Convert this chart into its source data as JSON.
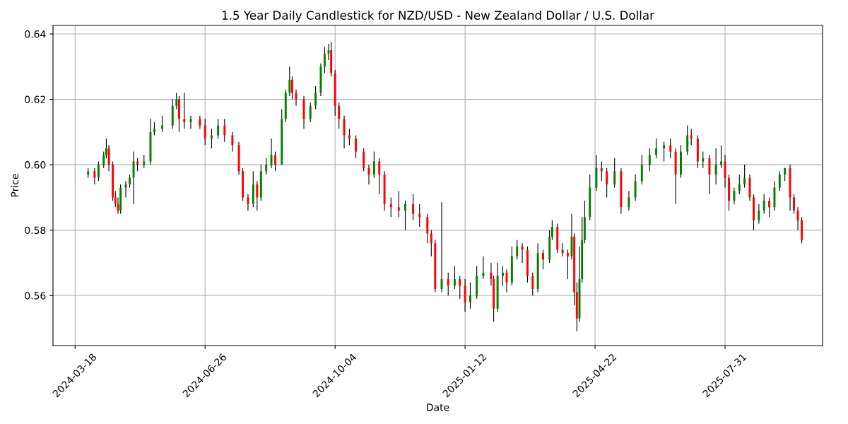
{
  "chart_data": {
    "type": "candlestick",
    "title": "1.5 Year Daily Candlestick for NZD/USD - New Zealand Dollar / U.S. Dollar",
    "xlabel": "Date",
    "ylabel": "Price",
    "grid": true,
    "color": "#000000",
    "colors": [
      "#008000",
      "#ff0000",
      "#008000",
      "#008000",
      "#008000",
      "#ff0000",
      "#ff0000",
      "#ff0000",
      "#ff0000",
      "#008000",
      "#008000",
      "#008000",
      "#008000",
      "#ff0000",
      "#008000",
      "#008000",
      "#008000",
      "#008000",
      "#008000",
      "#008000",
      "#ff0000",
      "#ff0000",
      "#008000",
      "#ff0000",
      "#ff0000",
      "#008000",
      "#008000",
      "#ff0000",
      "#ff0000",
      "#ff0000",
      "#ff0000",
      "#ff0000",
      "#008000",
      "#ff0000",
      "#008000",
      "#008000",
      "#008000",
      "#ff0000",
      "#008000",
      "#008000",
      "#008000",
      "#ff0000",
      "#ff0000",
      "#ff0000",
      "#008000",
      "#008000",
      "#008000",
      "#008000",
      "#008000",
      "#ff0000",
      "#ff0000",
      "#ff0000",
      "#ff0000",
      "#ff0000",
      "#ff0000",
      "#ff0000",
      "#ff0000",
      "#008000",
      "#ff0000",
      "#ff0000",
      "#ff0000",
      "#ff0000",
      "#008000",
      "#ff0000",
      "#ff0000",
      "#ff0000",
      "#ff0000",
      "#ff0000",
      "#008000",
      "#ff0000",
      "#008000",
      "#ff0000",
      "#ff0000",
      "#008000",
      "#008000",
      "#008000",
      "#ff0000",
      "#ff0000",
      "#008000",
      "#008000",
      "#ff0000",
      "#008000",
      "#008000",
      "#ff0000",
      "#ff0000",
      "#ff0000",
      "#008000",
      "#ff0000",
      "#008000",
      "#008000",
      "#ff0000",
      "#ff0000",
      "#ff0000",
      "#008000",
      "#ff0000",
      "#ff0000",
      "#008000",
      "#008000",
      "#008000",
      "#008000",
      "#008000",
      "#ff0000",
      "#ff0000",
      "#008000",
      "#ff0000",
      "#008000",
      "#008000",
      "#008000",
      "#008000",
      "#008000",
      "#008000",
      "#ff0000",
      "#ff0000",
      "#008000",
      "#008000",
      "#ff0000",
      "#ff0000",
      "#008000",
      "#ff0000",
      "#008000",
      "#008000",
      "#ff0000",
      "#ff0000",
      "#008000",
      "#008000",
      "#008000",
      "#ff0000",
      "#ff0000",
      "#008000",
      "#008000",
      "#ff0000",
      "#008000",
      "#008000",
      "#008000",
      "#ff0000",
      "#ff0000",
      "#ff0000",
      "#ff0000"
    ],
    "xlim": [
      "2024-03-01",
      "2025-10-14"
    ],
    "xticks": [
      "2024-03-18",
      "2024-06-26",
      "2024-10-04",
      "2025-01-12",
      "2025-04-22",
      "2025-07-31"
    ],
    "ylim": [
      0.5447,
      0.6426
    ],
    "yticks": [
      0.56,
      0.58,
      {
        "value": 0.6,
        "label": "0.60"
      },
      0.62,
      0.64
    ],
    "x": [
      "2024-03-28",
      "2024-04-02",
      "2024-04-05",
      "2024-04-09",
      "2024-04-11",
      "2024-04-13",
      "2024-04-16",
      "2024-04-18",
      "2024-04-20",
      "2024-04-22",
      "2024-04-26",
      "2024-04-29",
      "2024-05-02",
      "2024-05-05",
      "2024-05-10",
      "2024-05-15",
      "2024-05-18",
      "2024-05-24",
      "2024-06-01",
      "2024-06-04",
      "2024-06-06",
      "2024-06-10",
      "2024-06-15",
      "2024-06-22",
      "2024-06-26",
      "2024-07-01",
      "2024-07-06",
      "2024-07-11",
      "2024-07-17",
      "2024-07-22",
      "2024-07-25",
      "2024-07-29",
      "2024-08-02",
      "2024-08-05",
      "2024-08-08",
      "2024-08-12",
      "2024-08-16",
      "2024-08-19",
      "2024-08-24",
      "2024-08-27",
      "2024-08-30",
      "2024-09-01",
      "2024-09-04",
      "2024-09-10",
      "2024-09-15",
      "2024-09-19",
      "2024-09-23",
      "2024-09-26",
      "2024-09-29",
      "2024-10-01",
      "2024-10-04",
      "2024-10-07",
      "2024-10-11",
      "2024-10-15",
      "2024-10-20",
      "2024-10-26",
      "2024-10-30",
      "2024-11-03",
      "2024-11-07",
      "2024-11-11",
      "2024-11-16",
      "2024-11-22",
      "2024-11-27",
      "2024-12-03",
      "2024-12-08",
      "2024-12-14",
      "2024-12-17",
      "2024-12-20",
      "2024-12-25",
      "2024-12-30",
      "2025-01-04",
      "2025-01-08",
      "2025-01-12",
      "2025-01-16",
      "2025-01-21",
      "2025-01-26",
      "2025-02-01",
      "2025-02-03",
      "2025-02-06",
      "2025-02-10",
      "2025-02-13",
      "2025-02-17",
      "2025-02-21",
      "2025-02-25",
      "2025-03-01",
      "2025-03-05",
      "2025-03-09",
      "2025-03-13",
      "2025-03-18",
      "2025-03-20",
      "2025-03-24",
      "2025-03-28",
      "2025-04-01",
      "2025-04-04",
      "2025-04-06",
      "2025-04-08",
      "2025-04-10",
      "2025-04-12",
      "2025-04-14",
      "2025-04-18",
      "2025-04-23",
      "2025-04-27",
      "2025-05-01",
      "2025-05-07",
      "2025-05-12",
      "2025-05-18",
      "2025-05-23",
      "2025-05-28",
      "2025-06-03",
      "2025-06-08",
      "2025-06-14",
      "2025-06-19",
      "2025-06-23",
      "2025-06-27",
      "2025-07-02",
      "2025-07-05",
      "2025-07-10",
      "2025-07-14",
      "2025-07-19",
      "2025-07-24",
      "2025-07-28",
      "2025-07-31",
      "2025-08-03",
      "2025-08-07",
      "2025-08-11",
      "2025-08-15",
      "2025-08-19",
      "2025-08-22",
      "2025-08-26",
      "2025-08-30",
      "2025-09-03",
      "2025-09-07",
      "2025-09-11",
      "2025-09-15",
      "2025-09-19",
      "2025-09-22",
      "2025-09-25",
      "2025-09-28"
    ],
    "ohlc": [
      [
        0.597,
        0.599,
        0.596,
        0.598
      ],
      [
        0.598,
        0.599,
        0.594,
        0.596
      ],
      [
        0.596,
        0.601,
        0.595,
        0.6
      ],
      [
        0.6,
        0.604,
        0.599,
        0.603
      ],
      [
        0.603,
        0.608,
        0.602,
        0.605
      ],
      [
        0.605,
        0.606,
        0.598,
        0.6
      ],
      [
        0.6,
        0.601,
        0.589,
        0.59
      ],
      [
        0.59,
        0.592,
        0.587,
        0.588
      ],
      [
        0.588,
        0.59,
        0.585,
        0.586
      ],
      [
        0.586,
        0.594,
        0.585,
        0.593
      ],
      [
        0.593,
        0.595,
        0.59,
        0.594
      ],
      [
        0.594,
        0.597,
        0.593,
        0.596
      ],
      [
        0.596,
        0.604,
        0.588,
        0.601
      ],
      [
        0.601,
        0.602,
        0.598,
        0.6
      ],
      [
        0.6,
        0.603,
        0.599,
        0.601
      ],
      [
        0.601,
        0.614,
        0.6,
        0.61
      ],
      [
        0.61,
        0.613,
        0.609,
        0.611
      ],
      [
        0.611,
        0.615,
        0.61,
        0.612
      ],
      [
        0.612,
        0.62,
        0.611,
        0.618
      ],
      [
        0.618,
        0.622,
        0.617,
        0.62
      ],
      [
        0.62,
        0.621,
        0.61,
        0.614
      ],
      [
        0.614,
        0.622,
        0.611,
        0.613
      ],
      [
        0.613,
        0.615,
        0.611,
        0.614
      ],
      [
        0.614,
        0.615,
        0.611,
        0.612
      ],
      [
        0.612,
        0.614,
        0.606,
        0.608
      ],
      [
        0.608,
        0.611,
        0.605,
        0.609
      ],
      [
        0.609,
        0.614,
        0.608,
        0.612
      ],
      [
        0.612,
        0.614,
        0.607,
        0.609
      ],
      [
        0.609,
        0.61,
        0.604,
        0.606
      ],
      [
        0.606,
        0.607,
        0.597,
        0.598
      ],
      [
        0.598,
        0.599,
        0.589,
        0.59
      ],
      [
        0.59,
        0.591,
        0.586,
        0.588
      ],
      [
        0.588,
        0.598,
        0.587,
        0.594
      ],
      [
        0.594,
        0.595,
        0.586,
        0.59
      ],
      [
        0.59,
        0.6,
        0.589,
        0.598
      ],
      [
        0.598,
        0.602,
        0.597,
        0.6
      ],
      [
        0.6,
        0.608,
        0.599,
        0.603
      ],
      [
        0.603,
        0.604,
        0.598,
        0.6
      ],
      [
        0.6,
        0.617,
        0.6,
        0.614
      ],
      [
        0.614,
        0.623,
        0.613,
        0.622
      ],
      [
        0.622,
        0.63,
        0.621,
        0.626
      ],
      [
        0.626,
        0.627,
        0.62,
        0.622
      ],
      [
        0.622,
        0.623,
        0.618,
        0.62
      ],
      [
        0.62,
        0.621,
        0.611,
        0.614
      ],
      [
        0.614,
        0.619,
        0.613,
        0.618
      ],
      [
        0.618,
        0.624,
        0.617,
        0.622
      ],
      [
        0.622,
        0.631,
        0.621,
        0.63
      ],
      [
        0.63,
        0.636,
        0.628,
        0.634
      ],
      [
        0.634,
        0.637,
        0.632,
        0.635
      ],
      [
        0.635,
        0.6375,
        0.627,
        0.628
      ],
      [
        0.628,
        0.629,
        0.615,
        0.618
      ],
      [
        0.618,
        0.619,
        0.611,
        0.614
      ],
      [
        0.614,
        0.615,
        0.605,
        0.609
      ],
      [
        0.609,
        0.611,
        0.606,
        0.608
      ],
      [
        0.608,
        0.609,
        0.602,
        0.604
      ],
      [
        0.604,
        0.605,
        0.598,
        0.599
      ],
      [
        0.599,
        0.6,
        0.594,
        0.597
      ],
      [
        0.597,
        0.604,
        0.596,
        0.601
      ],
      [
        0.601,
        0.602,
        0.591,
        0.597
      ],
      [
        0.597,
        0.598,
        0.586,
        0.588
      ],
      [
        0.588,
        0.59,
        0.584,
        0.587
      ],
      [
        0.587,
        0.592,
        0.584,
        0.586
      ],
      [
        0.586,
        0.589,
        0.58,
        0.588
      ],
      [
        0.588,
        0.591,
        0.583,
        0.585
      ],
      [
        0.585,
        0.588,
        0.581,
        0.584
      ],
      [
        0.584,
        0.585,
        0.576,
        0.579
      ],
      [
        0.579,
        0.58,
        0.572,
        0.576
      ],
      [
        0.576,
        0.577,
        0.561,
        0.562
      ],
      [
        0.562,
        0.5885,
        0.561,
        0.565
      ],
      [
        0.565,
        0.567,
        0.56,
        0.563
      ],
      [
        0.563,
        0.569,
        0.562,
        0.565
      ],
      [
        0.565,
        0.566,
        0.559,
        0.563
      ],
      [
        0.563,
        0.565,
        0.555,
        0.558
      ],
      [
        0.558,
        0.564,
        0.556,
        0.56
      ],
      [
        0.56,
        0.569,
        0.559,
        0.566
      ],
      [
        0.566,
        0.572,
        0.565,
        0.567
      ],
      [
        0.567,
        0.57,
        0.563,
        0.565
      ],
      [
        0.565,
        0.566,
        0.552,
        0.556
      ],
      [
        0.556,
        0.57,
        0.555,
        0.566
      ],
      [
        0.566,
        0.569,
        0.563,
        0.567
      ],
      [
        0.567,
        0.568,
        0.561,
        0.564
      ],
      [
        0.564,
        0.575,
        0.563,
        0.572
      ],
      [
        0.572,
        0.577,
        0.571,
        0.575
      ],
      [
        0.575,
        0.576,
        0.57,
        0.574
      ],
      [
        0.574,
        0.575,
        0.564,
        0.566
      ],
      [
        0.566,
        0.567,
        0.56,
        0.562
      ],
      [
        0.562,
        0.576,
        0.561,
        0.573
      ],
      [
        0.573,
        0.574,
        0.568,
        0.571
      ],
      [
        0.571,
        0.58,
        0.57,
        0.578
      ],
      [
        0.578,
        0.583,
        0.577,
        0.581
      ],
      [
        0.581,
        0.582,
        0.573,
        0.574
      ],
      [
        0.574,
        0.576,
        0.572,
        0.573
      ],
      [
        0.573,
        0.574,
        0.565,
        0.572
      ],
      [
        0.572,
        0.585,
        0.571,
        0.578
      ],
      [
        0.578,
        0.579,
        0.557,
        0.561
      ],
      [
        0.561,
        0.564,
        0.549,
        0.553
      ],
      [
        0.553,
        0.575,
        0.552,
        0.565
      ],
      [
        0.565,
        0.584,
        0.564,
        0.577
      ],
      [
        0.577,
        0.589,
        0.576,
        0.584
      ],
      [
        0.584,
        0.597,
        0.583,
        0.593
      ],
      [
        0.593,
        0.603,
        0.592,
        0.599
      ],
      [
        0.599,
        0.601,
        0.595,
        0.598
      ],
      [
        0.598,
        0.599,
        0.59,
        0.594
      ],
      [
        0.594,
        0.602,
        0.593,
        0.598
      ],
      [
        0.598,
        0.599,
        0.585,
        0.587
      ],
      [
        0.587,
        0.592,
        0.586,
        0.59
      ],
      [
        0.59,
        0.597,
        0.589,
        0.595
      ],
      [
        0.595,
        0.603,
        0.594,
        0.6
      ],
      [
        0.6,
        0.605,
        0.598,
        0.603
      ],
      [
        0.603,
        0.608,
        0.602,
        0.605
      ],
      [
        0.605,
        0.607,
        0.601,
        0.606
      ],
      [
        0.606,
        0.608,
        0.602,
        0.604
      ],
      [
        0.604,
        0.605,
        0.588,
        0.597
      ],
      [
        0.597,
        0.606,
        0.596,
        0.604
      ],
      [
        0.604,
        0.612,
        0.603,
        0.609
      ],
      [
        0.609,
        0.611,
        0.606,
        0.608
      ],
      [
        0.608,
        0.609,
        0.599,
        0.601
      ],
      [
        0.601,
        0.604,
        0.599,
        0.602
      ],
      [
        0.602,
        0.603,
        0.591,
        0.597
      ],
      [
        0.597,
        0.605,
        0.594,
        0.6
      ],
      [
        0.6,
        0.606,
        0.599,
        0.601
      ],
      [
        0.601,
        0.603,
        0.593,
        0.596
      ],
      [
        0.596,
        0.597,
        0.586,
        0.589
      ],
      [
        0.589,
        0.593,
        0.588,
        0.592
      ],
      [
        0.592,
        0.597,
        0.591,
        0.594
      ],
      [
        0.594,
        0.6,
        0.593,
        0.596
      ],
      [
        0.596,
        0.597,
        0.589,
        0.59
      ],
      [
        0.59,
        0.591,
        0.58,
        0.583
      ],
      [
        0.583,
        0.588,
        0.582,
        0.586
      ],
      [
        0.586,
        0.591,
        0.585,
        0.589
      ],
      [
        0.589,
        0.59,
        0.584,
        0.587
      ],
      [
        0.587,
        0.595,
        0.586,
        0.593
      ],
      [
        0.593,
        0.598,
        0.592,
        0.597
      ],
      [
        0.597,
        0.599,
        0.595,
        0.599
      ],
      [
        0.599,
        0.6,
        0.586,
        0.59
      ],
      [
        0.59,
        0.591,
        0.585,
        0.586
      ],
      [
        0.586,
        0.587,
        0.58,
        0.583
      ],
      [
        0.583,
        0.584,
        0.576,
        0.577
      ]
    ]
  }
}
